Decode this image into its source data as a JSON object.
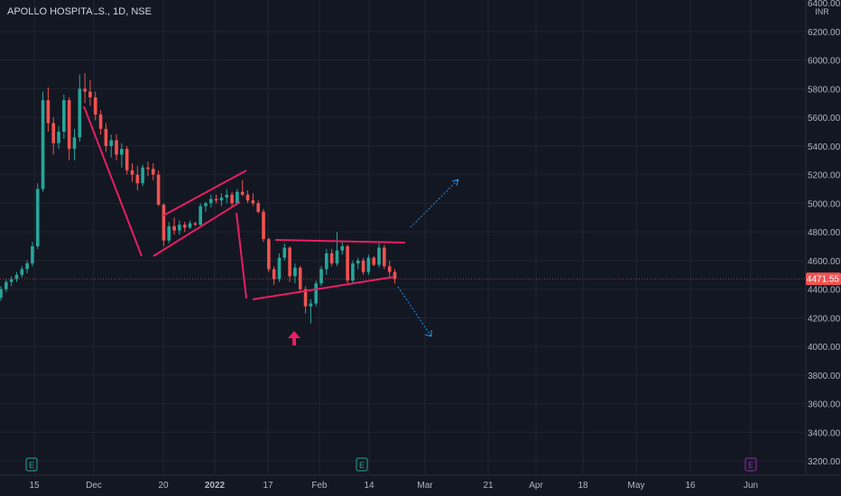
{
  "header": {
    "symbol_label": "APOLLO HOSPITALS., 1D, NSE",
    "currency": "INR"
  },
  "price_axis": {
    "top_partial_label": "6400.00",
    "labels": [
      "6200.00",
      "6000.00",
      "5800.00",
      "5600.00",
      "5400.00",
      "5200.00",
      "5000.00",
      "4800.00",
      "4600.00",
      "4400.00",
      "4200.00",
      "4000.00",
      "3800.00",
      "3600.00",
      "3400.00",
      "3200.00"
    ]
  },
  "time_axis": {
    "labels": [
      "15",
      "Dec",
      "20",
      "2022",
      "17",
      "Feb",
      "14",
      "Mar",
      "21",
      "Apr",
      "18",
      "May",
      "16",
      "Jun"
    ]
  },
  "last_price": {
    "label": "4471.55",
    "value": 4471.55
  },
  "colors": {
    "up": "#26a69a",
    "down": "#ef5350",
    "pattern_line": "#e91e63",
    "projection": "#2196f3",
    "event_up": "#26a69a",
    "event_down": "#9c27b0"
  },
  "markers": {
    "event_badges": [
      "E",
      "E",
      "E"
    ],
    "arrow_icon": "up-arrow-icon"
  },
  "chart_data": {
    "type": "candlestick",
    "title": "APOLLO HOSPITALS., 1D, NSE",
    "ylim": [
      3100,
      6420
    ],
    "y_ticks": [
      6200,
      6000,
      5800,
      5600,
      5400,
      5200,
      5000,
      4800,
      4600,
      4400,
      4200,
      4000,
      3800,
      3600,
      3400,
      3200
    ],
    "candles": [
      [
        4340,
        4420,
        4320,
        4400
      ],
      [
        4400,
        4470,
        4380,
        4450
      ],
      [
        4450,
        4490,
        4420,
        4470
      ],
      [
        4470,
        4520,
        4450,
        4500
      ],
      [
        4500,
        4560,
        4480,
        4540
      ],
      [
        4540,
        4600,
        4510,
        4580
      ],
      [
        4580,
        4730,
        4560,
        4700
      ],
      [
        4700,
        5140,
        4680,
        5100
      ],
      [
        5100,
        5780,
        5080,
        5720
      ],
      [
        5720,
        5810,
        5500,
        5560
      ],
      [
        5560,
        5600,
        5340,
        5420
      ],
      [
        5420,
        5540,
        5380,
        5500
      ],
      [
        5500,
        5760,
        5450,
        5720
      ],
      [
        5720,
        5740,
        5300,
        5380
      ],
      [
        5380,
        5520,
        5300,
        5460
      ],
      [
        5460,
        5900,
        5430,
        5800
      ],
      [
        5800,
        5910,
        5700,
        5780
      ],
      [
        5780,
        5860,
        5680,
        5740
      ],
      [
        5740,
        5780,
        5580,
        5620
      ],
      [
        5620,
        5650,
        5480,
        5520
      ],
      [
        5520,
        5560,
        5360,
        5400
      ],
      [
        5400,
        5480,
        5320,
        5440
      ],
      [
        5440,
        5480,
        5300,
        5340
      ],
      [
        5340,
        5420,
        5250,
        5380
      ],
      [
        5380,
        5400,
        5200,
        5230
      ],
      [
        5230,
        5280,
        5150,
        5200
      ],
      [
        5200,
        5260,
        5090,
        5140
      ],
      [
        5140,
        5270,
        5120,
        5250
      ],
      [
        5250,
        5290,
        5190,
        5240
      ],
      [
        5240,
        5280,
        5160,
        5200
      ],
      [
        5200,
        5230,
        4980,
        4990
      ],
      [
        4990,
        5000,
        4700,
        4740
      ],
      [
        4740,
        4870,
        4720,
        4840
      ],
      [
        4840,
        4900,
        4780,
        4810
      ],
      [
        4810,
        4880,
        4780,
        4850
      ],
      [
        4850,
        4870,
        4800,
        4830
      ],
      [
        4830,
        4880,
        4820,
        4860
      ],
      [
        4860,
        4870,
        4840,
        4850
      ],
      [
        4850,
        5000,
        4840,
        4980
      ],
      [
        4980,
        5010,
        4940,
        5000
      ],
      [
        5000,
        5060,
        4970,
        5030
      ],
      [
        5030,
        5060,
        5000,
        5020
      ],
      [
        5020,
        5070,
        4980,
        5040
      ],
      [
        5040,
        5100,
        5000,
        5060
      ],
      [
        5060,
        5080,
        4980,
        5000
      ],
      [
        5000,
        5100,
        4990,
        5080
      ],
      [
        5080,
        5160,
        5050,
        5060
      ],
      [
        5060,
        5090,
        5000,
        5020
      ],
      [
        5020,
        5070,
        4980,
        5000
      ],
      [
        5000,
        5020,
        4930,
        4940
      ],
      [
        4940,
        4960,
        4730,
        4750
      ],
      [
        4750,
        4760,
        4520,
        4540
      ],
      [
        4540,
        4560,
        4430,
        4470
      ],
      [
        4470,
        4650,
        4450,
        4620
      ],
      [
        4620,
        4720,
        4600,
        4690
      ],
      [
        4690,
        4700,
        4450,
        4490
      ],
      [
        4490,
        4580,
        4440,
        4550
      ],
      [
        4550,
        4560,
        4380,
        4400
      ],
      [
        4400,
        4420,
        4230,
        4280
      ],
      [
        4280,
        4330,
        4160,
        4300
      ],
      [
        4300,
        4460,
        4280,
        4440
      ],
      [
        4440,
        4560,
        4420,
        4540
      ],
      [
        4540,
        4680,
        4500,
        4650
      ],
      [
        4650,
        4680,
        4560,
        4580
      ],
      [
        4580,
        4800,
        4560,
        4670
      ],
      [
        4670,
        4740,
        4640,
        4700
      ],
      [
        4700,
        4710,
        4440,
        4460
      ],
      [
        4460,
        4600,
        4440,
        4580
      ],
      [
        4580,
        4620,
        4540,
        4600
      ],
      [
        4600,
        4620,
        4500,
        4520
      ],
      [
        4520,
        4640,
        4500,
        4620
      ],
      [
        4620,
        4630,
        4560,
        4570
      ],
      [
        4570,
        4720,
        4550,
        4690
      ],
      [
        4690,
        4710,
        4540,
        4560
      ],
      [
        4560,
        4600,
        4480,
        4520
      ],
      [
        4520,
        4540,
        4440,
        4471.55
      ]
    ],
    "pattern_lines": [
      {
        "points": [
          [
            4940,
            5780
          ],
          [
            4420,
            4620
          ]
        ]
      },
      {
        "points": [
          [
            4480,
            4630
          ],
          [
            4830,
            5230
          ]
        ]
      },
      {
        "points": [
          [
            4380,
            4820
          ],
          [
            4790,
            5220
          ]
        ]
      },
      {
        "points": [
          [
            4820,
            5100
          ],
          [
            4480,
            4390
          ]
        ]
      },
      {
        "points": [
          [
            4540,
            4340
          ],
          [
            5090,
            4480
          ]
        ]
      },
      {
        "points": [
          [
            5160,
            4740
          ],
          [
            5220,
            4720
          ]
        ]
      }
    ]
  }
}
